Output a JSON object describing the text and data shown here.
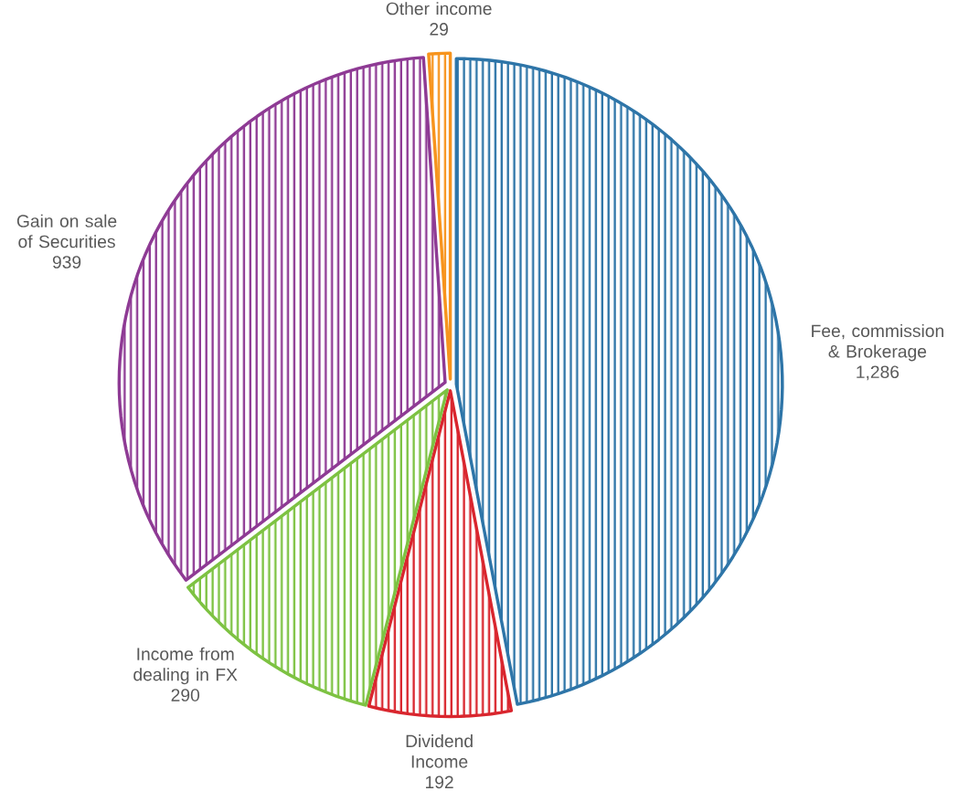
{
  "chart_data": {
    "type": "pie",
    "categories": [
      "Fee, commission & Brokerage",
      "Dividend Income",
      "Income from dealing in FX",
      "Gain on sale of Securities",
      "Other income"
    ],
    "values": [
      1286,
      192,
      290,
      939,
      29
    ],
    "value_labels": [
      "1,286",
      "192",
      "290",
      "939",
      "29"
    ],
    "colors": [
      "#2e75a8",
      "#d9262e",
      "#7dc242",
      "#8e3a94",
      "#f7941d"
    ]
  }
}
